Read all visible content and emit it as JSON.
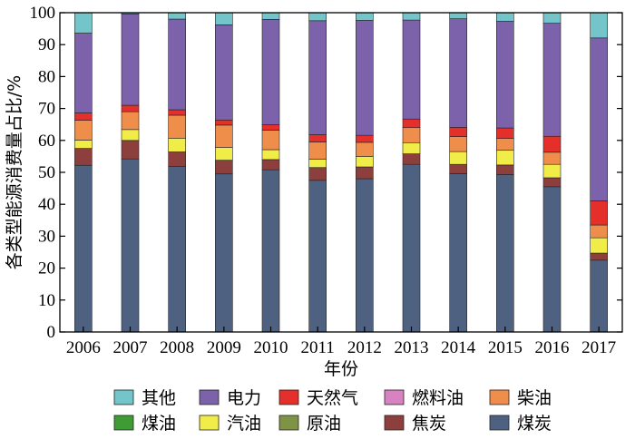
{
  "chart_data": {
    "type": "bar",
    "stacked": true,
    "xlabel": "年份",
    "ylabel": "各类型能源消费量占比/%",
    "ylim": [
      0,
      100
    ],
    "yticks": [
      0,
      10,
      20,
      30,
      40,
      50,
      60,
      70,
      80,
      90,
      100
    ],
    "categories": [
      "2006",
      "2007",
      "2008",
      "2009",
      "2010",
      "2011",
      "2012",
      "2013",
      "2014",
      "2015",
      "2016",
      "2017"
    ],
    "grid": false,
    "legend_position": "bottom",
    "series": [
      {
        "name": "煤炭",
        "color": "#4e6181",
        "values": [
          52.2,
          54.2,
          51.9,
          49.5,
          50.8,
          47.5,
          48.0,
          52.5,
          49.6,
          49.3,
          45.5,
          22.5
        ]
      },
      {
        "name": "焦炭",
        "color": "#8c3f3c",
        "values": [
          5.3,
          5.8,
          4.5,
          4.3,
          3.2,
          4.0,
          3.7,
          3.3,
          2.9,
          3.0,
          2.8,
          2.2
        ]
      },
      {
        "name": "原油",
        "color": "#7f9347",
        "values": [
          0,
          0,
          0,
          0,
          0,
          0,
          0,
          0,
          0,
          0,
          0,
          0
        ]
      },
      {
        "name": "汽油",
        "color": "#f0ec48",
        "values": [
          2.6,
          3.4,
          4.3,
          4.0,
          3.1,
          2.6,
          3.3,
          3.5,
          4.0,
          4.6,
          4.2,
          4.8
        ]
      },
      {
        "name": "煤油",
        "color": "#3f9c35",
        "values": [
          0,
          0,
          0,
          0,
          0,
          0,
          0,
          0,
          0,
          0,
          0,
          0
        ]
      },
      {
        "name": "柴油",
        "color": "#ef8e4b",
        "values": [
          6.2,
          5.6,
          7.2,
          7.0,
          6.1,
          5.4,
          4.4,
          4.7,
          4.7,
          3.7,
          3.8,
          4.0
        ]
      },
      {
        "name": "燃料油",
        "color": "#d982c2",
        "values": [
          0,
          0,
          0,
          0,
          0,
          0,
          0,
          0,
          0,
          0,
          0,
          0
        ]
      },
      {
        "name": "天然气",
        "color": "#e42f2b",
        "values": [
          2.3,
          2.0,
          1.7,
          1.6,
          1.7,
          2.3,
          2.2,
          2.7,
          2.9,
          3.3,
          5.0,
          7.6
        ]
      },
      {
        "name": "电力",
        "color": "#7c62aa",
        "values": [
          25.0,
          28.6,
          28.4,
          29.8,
          33.0,
          35.7,
          36.0,
          31.0,
          34.0,
          33.4,
          35.4,
          51.0
        ]
      },
      {
        "name": "其他",
        "color": "#73c5c9",
        "values": [
          6.4,
          0.4,
          2.0,
          3.8,
          2.1,
          2.5,
          2.4,
          2.3,
          1.9,
          2.7,
          3.3,
          7.9
        ]
      }
    ],
    "legend_order": [
      "其他",
      "电力",
      "天然气",
      "燃料油",
      "柴油",
      "煤油",
      "汽油",
      "原油",
      "焦炭",
      "煤炭"
    ]
  }
}
